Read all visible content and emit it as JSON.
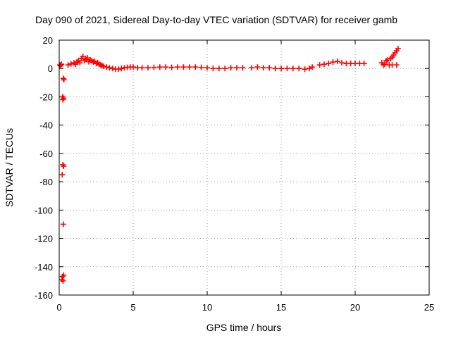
{
  "chart_data": {
    "type": "scatter",
    "title": "Day 090 of 2021, Sidereal Day-to-day VTEC variation (SDTVAR) for receiver gamb",
    "xlabel": "GPS time / hours",
    "ylabel": "SDTVAR / TECUs",
    "xlim": [
      0,
      25
    ],
    "ylim": [
      -160,
      20
    ],
    "xticks": [
      0,
      5,
      10,
      15,
      20,
      25
    ],
    "yticks": [
      20,
      0,
      -20,
      -40,
      -60,
      -80,
      -100,
      -120,
      -140,
      -160
    ],
    "grid": true,
    "marker": "plus",
    "color": "#ff0000",
    "series": [
      {
        "name": "SDTVAR",
        "points": [
          [
            0.05,
            2.5
          ],
          [
            0.1,
            1.8
          ],
          [
            0.15,
            3.0
          ],
          [
            0.22,
            -20
          ],
          [
            0.25,
            -22
          ],
          [
            0.3,
            -21
          ],
          [
            0.28,
            -7
          ],
          [
            0.32,
            -8
          ],
          [
            0.25,
            -68
          ],
          [
            0.3,
            -69
          ],
          [
            0.2,
            -75
          ],
          [
            0.28,
            -110
          ],
          [
            0.22,
            -147
          ],
          [
            0.3,
            -146
          ],
          [
            0.18,
            -149
          ],
          [
            0.26,
            -150
          ],
          [
            0.6,
            2.5
          ],
          [
            0.8,
            3.2
          ],
          [
            1.0,
            4.0
          ],
          [
            1.1,
            3.0
          ],
          [
            1.2,
            4.5
          ],
          [
            1.3,
            5.5
          ],
          [
            1.4,
            4.0
          ],
          [
            1.5,
            7.0
          ],
          [
            1.6,
            8.5
          ],
          [
            1.7,
            5.5
          ],
          [
            1.8,
            6.5
          ],
          [
            1.9,
            7.5
          ],
          [
            2.0,
            4.8
          ],
          [
            2.1,
            6.0
          ],
          [
            2.2,
            5.5
          ],
          [
            2.3,
            4.5
          ],
          [
            2.4,
            5.0
          ],
          [
            2.5,
            3.5
          ],
          [
            2.6,
            4.0
          ],
          [
            2.7,
            3.0
          ],
          [
            2.8,
            2.5
          ],
          [
            2.9,
            2.0
          ],
          [
            3.0,
            1.5
          ],
          [
            3.2,
            1.0
          ],
          [
            3.4,
            0.5
          ],
          [
            3.6,
            0.0
          ],
          [
            3.8,
            -0.5
          ],
          [
            4.0,
            -0.5
          ],
          [
            4.2,
            0.0
          ],
          [
            4.4,
            0.5
          ],
          [
            4.6,
            0.8
          ],
          [
            4.8,
            1.0
          ],
          [
            5.0,
            1.0
          ],
          [
            5.3,
            0.5
          ],
          [
            5.6,
            0.5
          ],
          [
            6.0,
            0.5
          ],
          [
            6.4,
            0.8
          ],
          [
            6.8,
            1.0
          ],
          [
            7.2,
            1.0
          ],
          [
            7.6,
            0.8
          ],
          [
            8.0,
            1.0
          ],
          [
            8.4,
            1.0
          ],
          [
            8.8,
            1.0
          ],
          [
            9.2,
            1.0
          ],
          [
            9.6,
            0.8
          ],
          [
            10.0,
            0.5
          ],
          [
            10.4,
            0.0
          ],
          [
            10.8,
            0.0
          ],
          [
            11.2,
            0.0
          ],
          [
            11.6,
            0.5
          ],
          [
            12.0,
            0.5
          ],
          [
            12.4,
            0.5
          ],
          [
            13.0,
            0.5
          ],
          [
            13.4,
            1.0
          ],
          [
            13.8,
            0.5
          ],
          [
            14.2,
            0.5
          ],
          [
            14.6,
            0.0
          ],
          [
            15.0,
            0.0
          ],
          [
            15.4,
            0.0
          ],
          [
            15.8,
            0.0
          ],
          [
            16.2,
            0.0
          ],
          [
            16.6,
            -0.5
          ],
          [
            16.9,
            0.0
          ],
          [
            17.1,
            1.0
          ],
          [
            17.6,
            2.5
          ],
          [
            17.9,
            3.0
          ],
          [
            18.2,
            3.5
          ],
          [
            18.5,
            4.5
          ],
          [
            18.8,
            5.0
          ],
          [
            19.1,
            4.0
          ],
          [
            19.4,
            3.5
          ],
          [
            19.7,
            3.5
          ],
          [
            20.0,
            3.5
          ],
          [
            20.3,
            3.5
          ],
          [
            20.6,
            3.5
          ],
          [
            21.8,
            4.0
          ],
          [
            21.9,
            2.5
          ],
          [
            22.0,
            3.0
          ],
          [
            22.1,
            5.5
          ],
          [
            22.2,
            6.0
          ],
          [
            22.3,
            2.5
          ],
          [
            22.4,
            7.0
          ],
          [
            22.5,
            8.0
          ],
          [
            22.6,
            9.5
          ],
          [
            22.7,
            11.0
          ],
          [
            22.8,
            12.5
          ],
          [
            22.9,
            14.0
          ],
          [
            22.5,
            2.5
          ],
          [
            22.8,
            2.5
          ]
        ]
      }
    ]
  }
}
